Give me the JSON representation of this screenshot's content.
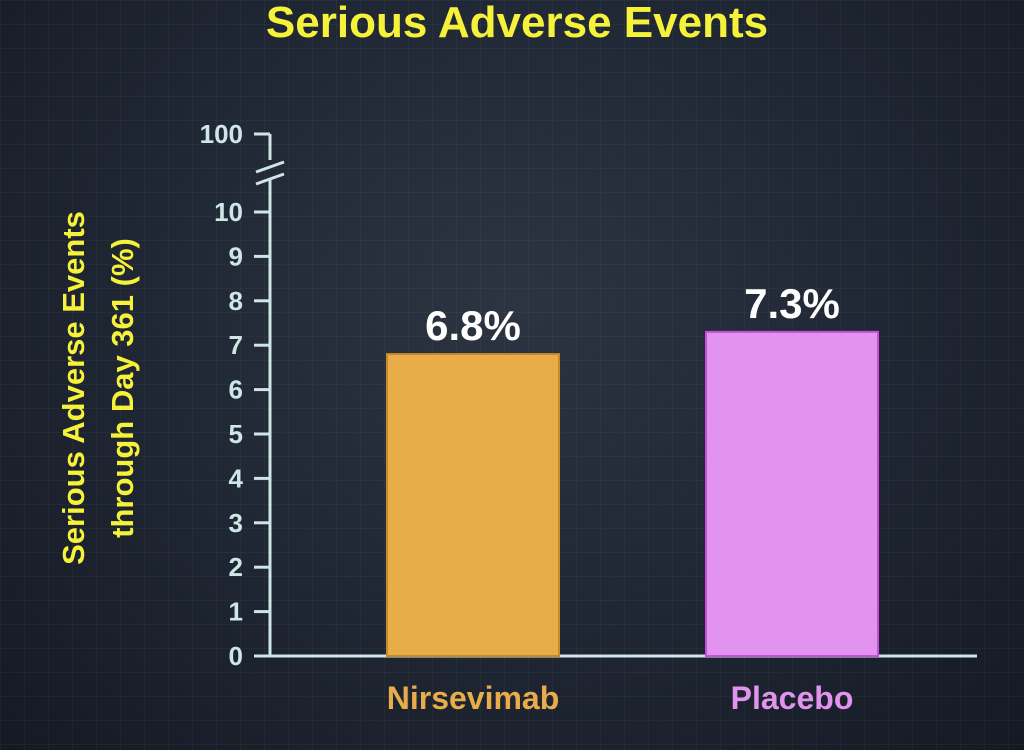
{
  "chart_data": {
    "type": "bar",
    "title": "Serious Adverse Events",
    "ylabel_lines": [
      "Serious Adverse Events",
      "through Day 361 (%)"
    ],
    "xlabel": "",
    "categories": [
      "Nirsevimab",
      "Placebo"
    ],
    "values": [
      6.8,
      7.3
    ],
    "value_labels": [
      "6.8%",
      "7.3%"
    ],
    "ylim": [
      0,
      10
    ],
    "y_ticks": [
      "0",
      "1",
      "2",
      "3",
      "4",
      "5",
      "6",
      "7",
      "8",
      "9",
      "10"
    ],
    "y_break_tick": "100",
    "y_axis_broken": true,
    "grid": false,
    "colors": {
      "bars": [
        "#e8ac49",
        "#e293f0"
      ],
      "bar_borders": [
        "#c98a2a",
        "#c64fd8"
      ],
      "category_labels": [
        "#e8ac49",
        "#e293f0"
      ],
      "title": "#f6f23a",
      "axis": "#cfe6e6"
    }
  }
}
